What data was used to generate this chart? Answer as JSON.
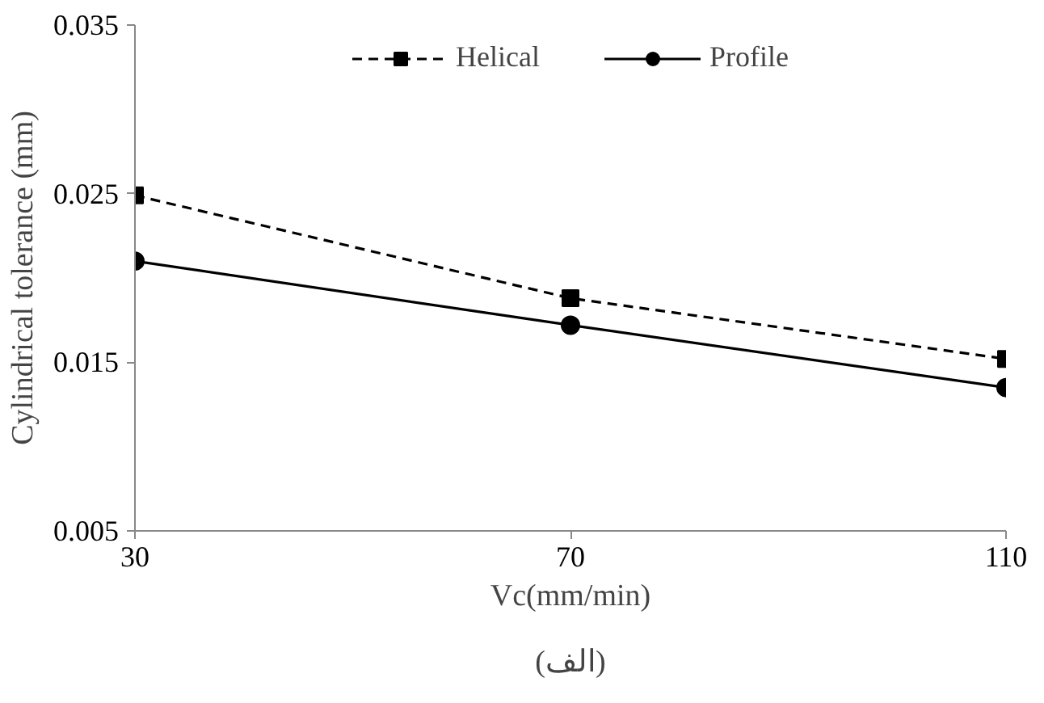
{
  "chart_data": {
    "type": "line",
    "xlabel": "Vc(mm/min)",
    "ylabel": "Cylindrical tolerance (mm)",
    "annotations": [
      "(الف)"
    ],
    "x": [
      30,
      70,
      110
    ],
    "series": [
      {
        "name": "Helical",
        "color": "#000000",
        "values": [
          0.0249,
          0.0188,
          0.0152
        ],
        "marker": "square",
        "line_style": "dashed"
      },
      {
        "name": "Profile",
        "color": "#000000",
        "values": [
          0.021,
          0.0172,
          0.0135
        ],
        "marker": "circle",
        "line_style": "solid"
      }
    ],
    "xlim": [
      30,
      110
    ],
    "xticks": [
      30,
      70,
      110
    ],
    "ylim": [
      0.005,
      0.035
    ],
    "yticks": [
      0.005,
      0.015,
      0.025,
      0.035
    ],
    "grid": false,
    "legend": "top"
  }
}
